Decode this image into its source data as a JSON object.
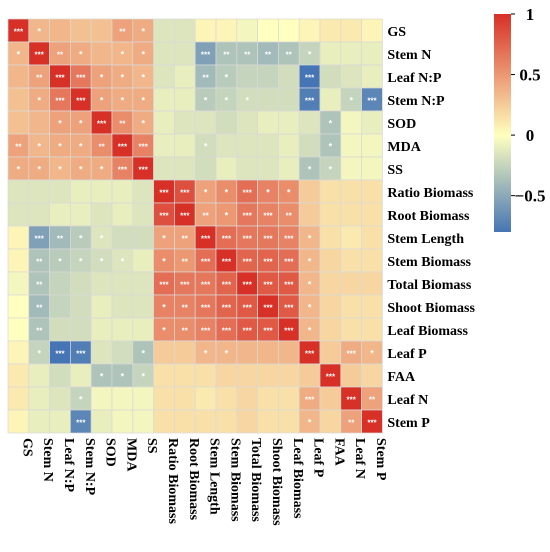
{
  "chart_data": {
    "type": "heatmap",
    "variables": [
      "GS",
      "Stem N",
      "Leaf N:P",
      "Stem N:P",
      "SOD",
      "MDA",
      "SS",
      "Ratio Biomass",
      "Root Biomass",
      "Stem Length",
      "Stem Biomass",
      "Total Biomass",
      "Shoot Biomass",
      "Leaf Biomass",
      "Leaf P",
      "FAA",
      "Leaf N",
      "Stem P"
    ],
    "values": [
      [
        1.0,
        0.35,
        0.35,
        0.3,
        0.3,
        0.45,
        0.4,
        -0.15,
        -0.15,
        0.05,
        0.05,
        -0.05,
        0.0,
        0.0,
        0.05,
        0.1,
        0.1,
        0.05
      ],
      [
        0.35,
        1.0,
        0.45,
        0.4,
        0.35,
        0.35,
        0.4,
        -0.15,
        -0.15,
        -0.55,
        -0.35,
        -0.35,
        -0.4,
        -0.35,
        -0.25,
        -0.1,
        -0.1,
        -0.1
      ],
      [
        0.35,
        0.45,
        1.0,
        0.65,
        0.45,
        0.4,
        0.35,
        -0.15,
        -0.1,
        -0.4,
        -0.3,
        -0.25,
        -0.25,
        -0.2,
        -0.85,
        -0.2,
        -0.15,
        -0.1
      ],
      [
        0.3,
        0.4,
        0.65,
        1.0,
        0.45,
        0.4,
        0.4,
        -0.1,
        -0.1,
        -0.3,
        -0.25,
        -0.2,
        -0.2,
        -0.2,
        -0.75,
        -0.1,
        -0.25,
        -0.7
      ],
      [
        0.3,
        0.35,
        0.45,
        0.45,
        1.0,
        0.55,
        0.4,
        -0.1,
        -0.15,
        -0.15,
        -0.2,
        -0.15,
        -0.1,
        -0.1,
        -0.15,
        -0.35,
        -0.05,
        -0.1
      ],
      [
        0.45,
        0.35,
        0.4,
        0.4,
        0.55,
        1.0,
        0.6,
        -0.1,
        -0.1,
        -0.2,
        -0.15,
        -0.15,
        -0.15,
        -0.1,
        -0.2,
        -0.35,
        -0.05,
        -0.05
      ],
      [
        0.4,
        0.4,
        0.35,
        0.4,
        0.4,
        0.6,
        1.0,
        -0.15,
        -0.15,
        -0.2,
        -0.1,
        -0.15,
        -0.15,
        -0.1,
        -0.35,
        -0.25,
        -0.05,
        -0.05
      ],
      [
        -0.15,
        -0.15,
        -0.15,
        -0.1,
        -0.1,
        -0.1,
        -0.15,
        1.0,
        0.85,
        0.45,
        0.55,
        0.7,
        0.6,
        0.55,
        0.25,
        0.15,
        0.15,
        0.15
      ],
      [
        -0.15,
        -0.15,
        -0.1,
        -0.1,
        -0.15,
        -0.1,
        -0.15,
        0.85,
        1.0,
        0.45,
        0.5,
        0.65,
        0.6,
        0.55,
        0.25,
        0.15,
        0.15,
        0.15
      ],
      [
        0.05,
        -0.55,
        -0.4,
        -0.3,
        -0.15,
        -0.2,
        -0.2,
        0.45,
        0.45,
        1.0,
        0.7,
        0.65,
        0.65,
        0.6,
        0.35,
        0.15,
        0.1,
        0.15
      ],
      [
        0.05,
        -0.35,
        -0.3,
        -0.25,
        -0.2,
        -0.15,
        -0.1,
        0.55,
        0.5,
        0.7,
        1.0,
        0.75,
        0.75,
        0.7,
        0.35,
        0.2,
        0.15,
        0.15
      ],
      [
        -0.05,
        -0.35,
        -0.25,
        -0.2,
        -0.15,
        -0.15,
        -0.15,
        0.7,
        0.65,
        0.65,
        0.75,
        1.0,
        0.8,
        0.8,
        0.35,
        0.2,
        0.2,
        0.2
      ],
      [
        0.0,
        -0.4,
        -0.25,
        -0.2,
        -0.1,
        -0.15,
        -0.15,
        0.6,
        0.6,
        0.65,
        0.75,
        0.8,
        1.0,
        0.8,
        0.35,
        0.2,
        0.15,
        0.15
      ],
      [
        0.0,
        -0.35,
        -0.2,
        -0.2,
        -0.1,
        -0.1,
        -0.1,
        0.55,
        0.55,
        0.6,
        0.7,
        0.8,
        0.8,
        1.0,
        0.35,
        0.2,
        0.15,
        0.15
      ],
      [
        0.05,
        -0.25,
        -0.85,
        -0.75,
        -0.15,
        -0.2,
        -0.35,
        0.25,
        0.25,
        0.35,
        0.35,
        0.35,
        0.35,
        0.35,
        1.0,
        0.25,
        0.4,
        0.35
      ],
      [
        0.1,
        -0.1,
        -0.2,
        -0.1,
        -0.35,
        -0.35,
        -0.25,
        0.15,
        0.15,
        0.15,
        0.2,
        0.2,
        0.2,
        0.2,
        0.25,
        1.0,
        0.25,
        0.2
      ],
      [
        0.1,
        -0.1,
        -0.15,
        -0.25,
        -0.05,
        -0.05,
        -0.05,
        0.15,
        0.15,
        0.1,
        0.15,
        0.2,
        0.15,
        0.15,
        0.4,
        0.25,
        1.0,
        0.45
      ],
      [
        0.05,
        -0.1,
        -0.1,
        -0.7,
        -0.1,
        -0.05,
        -0.05,
        0.15,
        0.15,
        0.15,
        0.15,
        0.2,
        0.15,
        0.15,
        0.35,
        0.2,
        0.45,
        1.0
      ]
    ],
    "significance": [
      [
        "***",
        "*",
        "",
        "",
        "",
        "**",
        "*",
        "",
        "",
        "",
        "",
        "",
        "",
        "",
        "",
        "",
        "",
        ""
      ],
      [
        "*",
        "***",
        "**",
        "*",
        "",
        "*",
        "*",
        "",
        "",
        "***",
        "**",
        "**",
        "**",
        "**",
        "*",
        "",
        "",
        ""
      ],
      [
        "",
        "**",
        "***",
        "***",
        "*",
        "*",
        "*",
        "",
        "",
        "**",
        "*",
        "",
        "",
        "",
        "***",
        "",
        "",
        ""
      ],
      [
        "",
        "*",
        "***",
        "***",
        "*",
        "*",
        "*",
        "",
        "",
        "*",
        "*",
        "*",
        "",
        "",
        "***",
        "",
        "*",
        "***"
      ],
      [
        "",
        "",
        "*",
        "*",
        "***",
        "**",
        "*",
        "",
        "",
        "",
        "",
        "",
        "",
        "",
        "",
        "*",
        "",
        ""
      ],
      [
        "**",
        "*",
        "*",
        "*",
        "**",
        "***",
        "***",
        "",
        "",
        "*",
        "",
        "",
        "",
        "",
        "",
        "*",
        "",
        ""
      ],
      [
        "*",
        "*",
        "*",
        "*",
        "*",
        "***",
        "***",
        "",
        "",
        "",
        "",
        "",
        "",
        "",
        "*",
        "*",
        "",
        ""
      ],
      [
        "",
        "",
        "",
        "",
        "",
        "",
        "",
        "***",
        "***",
        "*",
        "*",
        "***",
        "*",
        "*",
        "",
        "",
        "",
        ""
      ],
      [
        "",
        "",
        "",
        "",
        "",
        "",
        "",
        "***",
        "***",
        "**",
        "*",
        "***",
        "***",
        "**",
        "",
        "",
        "",
        ""
      ],
      [
        "",
        "***",
        "**",
        "*",
        "*",
        "",
        "",
        "*",
        "**",
        "***",
        "***",
        "***",
        "***",
        "***",
        "*",
        "",
        "",
        ""
      ],
      [
        "",
        "**",
        "*",
        "*",
        "*",
        "*",
        "",
        "*",
        "**",
        "***",
        "***",
        "***",
        "***",
        "***",
        "*",
        "",
        "",
        ""
      ],
      [
        "",
        "**",
        "",
        "",
        "",
        "",
        "",
        "***",
        "***",
        "***",
        "***",
        "***",
        "***",
        "***",
        "*",
        "",
        "",
        ""
      ],
      [
        "",
        "**",
        "",
        "",
        "",
        "",
        "",
        "*",
        "**",
        "***",
        "***",
        "***",
        "***",
        "***",
        "*",
        "",
        "",
        ""
      ],
      [
        "",
        "**",
        "",
        "",
        "",
        "",
        "",
        "*",
        "**",
        "***",
        "***",
        "***",
        "***",
        "***",
        "*",
        "",
        "",
        ""
      ],
      [
        "",
        "*",
        "***",
        "***",
        "",
        "",
        "*",
        "",
        "",
        "*",
        "*",
        "",
        "",
        "",
        "***",
        "",
        "***",
        "*"
      ],
      [
        "",
        "",
        "",
        "",
        "*",
        "*",
        "*",
        "",
        "",
        "",
        "",
        "",
        "",
        "",
        "",
        "***",
        "",
        ""
      ],
      [
        "",
        "",
        "",
        "*",
        "",
        "",
        "",
        "",
        "",
        "",
        "",
        "",
        "",
        "",
        "***",
        "",
        "***",
        "**"
      ],
      [
        "",
        "",
        "",
        "***",
        "",
        "",
        "",
        "",
        "",
        "",
        "",
        "",
        "",
        "",
        "*",
        "",
        "**",
        "***"
      ]
    ],
    "colorbar": {
      "range": [
        -0.8,
        1
      ],
      "ticks": [
        {
          "value": 1,
          "label": "1"
        },
        {
          "value": 0.5,
          "label": "0.5"
        },
        {
          "value": 0,
          "label": "0"
        },
        {
          "value": -0.5,
          "label": "−0.5"
        }
      ],
      "colors": {
        "low": "#4575b4",
        "mid": "#ffffbf",
        "high": "#d73027"
      }
    }
  }
}
